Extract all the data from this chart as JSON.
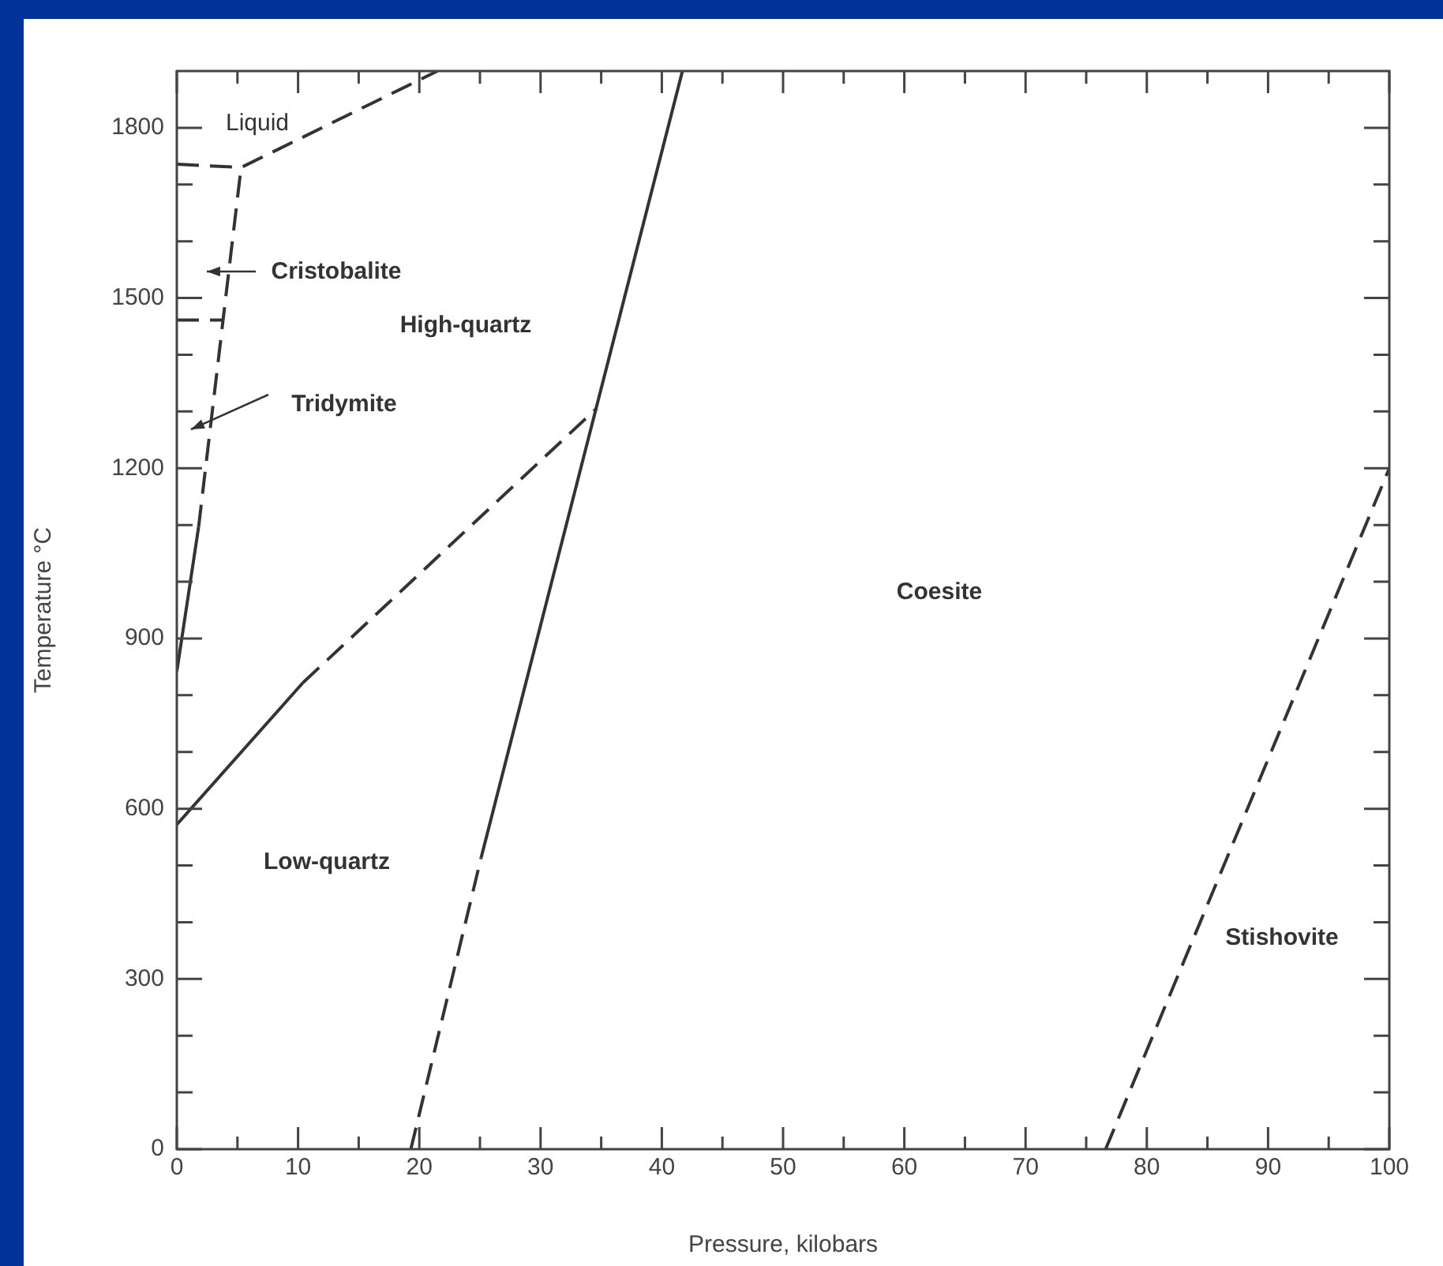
{
  "chart_data": {
    "type": "line",
    "xlabel": "Pressure, kilobars",
    "ylabel": "Temperature °C",
    "xlim": [
      0,
      100
    ],
    "ylim": [
      0,
      1900
    ],
    "xticks": [
      0,
      {
        "value": 5,
        "label": null
      },
      10,
      {
        "value": 15,
        "label": null
      },
      20,
      {
        "value": 25,
        "label": null
      },
      30,
      {
        "value": 35,
        "label": null
      },
      40,
      {
        "value": 45,
        "label": null
      },
      50,
      {
        "value": 55,
        "label": null
      },
      60,
      {
        "value": 65,
        "label": null
      },
      70,
      {
        "value": 75,
        "label": null
      },
      80,
      {
        "value": 85,
        "label": null
      },
      90,
      {
        "value": 95,
        "label": null
      },
      100
    ],
    "yticks": [
      0,
      {
        "value": 100,
        "label": null
      },
      {
        "value": 200,
        "label": null
      },
      300,
      {
        "value": 400,
        "label": null
      },
      {
        "value": 500,
        "label": null
      },
      600,
      {
        "value": 700,
        "label": null
      },
      {
        "value": 800,
        "label": null
      },
      900,
      {
        "value": 1000,
        "label": null
      },
      {
        "value": 1100,
        "label": null
      },
      1200,
      {
        "value": 1300,
        "label": null
      },
      {
        "value": 1400,
        "label": null
      },
      1500,
      {
        "value": 1600,
        "label": null
      },
      {
        "value": 1700,
        "label": null
      },
      1800
    ],
    "legend": false,
    "grid": false,
    "marker": "none",
    "series": [
      {
        "color": "#333333",
        "line_style": "dashed",
        "x": [
          0,
          5.3,
          21.5
        ],
        "values": [
          1736,
          1730,
          1900
        ]
      },
      {
        "color": "#333333",
        "line_style": "dashed",
        "x": [
          0,
          3.9
        ],
        "values": [
          1461,
          1461
        ]
      },
      {
        "color": "#333333",
        "line_style": "solid",
        "x": [
          0,
          1.8
        ],
        "values": [
          842,
          1097
        ]
      },
      {
        "color": "#333333",
        "line_style": "dashed",
        "x": [
          1.8,
          5.3
        ],
        "values": [
          1097,
          1730
        ]
      },
      {
        "color": "#333333",
        "line_style": "solid",
        "x": [
          0,
          10.4
        ],
        "values": [
          572,
          822
        ]
      },
      {
        "color": "#333333",
        "line_style": "dashed",
        "x": [
          10.4,
          34.6
        ],
        "values": [
          822,
          1305
        ]
      },
      {
        "color": "#333333",
        "line_style": "dashed",
        "x": [
          19.3,
          25.1
        ],
        "values": [
          0,
          514
        ]
      },
      {
        "color": "#333333",
        "line_style": "solid",
        "x": [
          25.1,
          41.7
        ],
        "values": [
          514,
          1900
        ]
      },
      {
        "color": "#333333",
        "line_style": "dashed",
        "x": [
          76.6,
          100
        ],
        "values": [
          0,
          1200
        ]
      }
    ],
    "annotations": [
      "Liquid",
      "Cristobalite",
      "High-quartz",
      "Tridymite",
      "Coesite",
      "Low-quartz",
      "Stishovite"
    ]
  }
}
